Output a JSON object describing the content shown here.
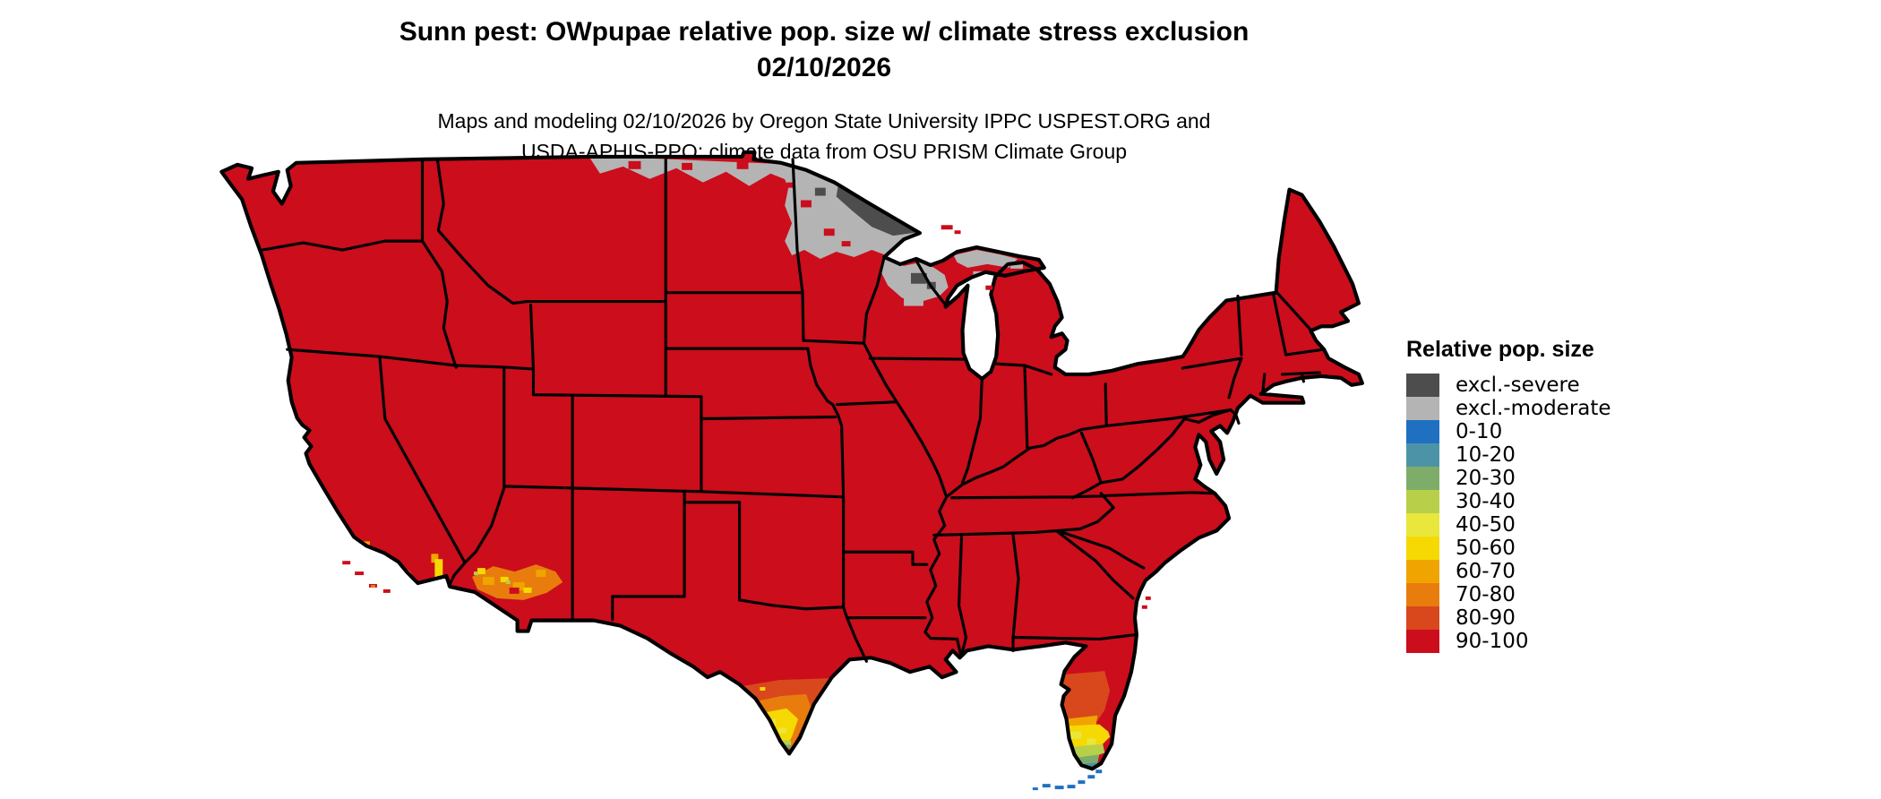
{
  "header": {
    "title_line1": "Sunn pest: OWpupae relative pop. size w/ climate stress exclusion",
    "title_line2": "02/10/2026",
    "subtitle_line1": "Maps and modeling 02/10/2026 by Oregon State University IPPC USPEST.ORG and",
    "subtitle_line2": "USDA-APHIS-PPQ; climate data from OSU PRISM Climate Group"
  },
  "legend": {
    "title": "Relative pop. size",
    "items": [
      {
        "label": "excl.-severe",
        "class": "excl_severe"
      },
      {
        "label": "excl.-moderate",
        "class": "excl_moderate"
      },
      {
        "label": "0-10",
        "class": "c0_10"
      },
      {
        "label": "10-20",
        "class": "c10_20"
      },
      {
        "label": "20-30",
        "class": "c20_30"
      },
      {
        "label": "30-40",
        "class": "c30_40"
      },
      {
        "label": "40-50",
        "class": "c40_50"
      },
      {
        "label": "50-60",
        "class": "c50_60"
      },
      {
        "label": "60-70",
        "class": "c60_70"
      },
      {
        "label": "70-80",
        "class": "c70_80"
      },
      {
        "label": "80-90",
        "class": "c80_90"
      },
      {
        "label": "90-100",
        "class": "c90_100"
      }
    ]
  },
  "map": {
    "palette": {
      "excl_severe": "#4D4D4D",
      "excl_moderate": "#B4B4B4",
      "c0_10": "#1F70C1",
      "c10_20": "#4D93A8",
      "c20_30": "#7EAD69",
      "c30_40": "#B8CF4A",
      "c40_50": "#E9E73C",
      "c50_60": "#F6D903",
      "c60_70": "#F0A400",
      "c70_80": "#E87D0D",
      "c80_90": "#D8481C",
      "c90_100": "#CB0D1C"
    },
    "border_color": "#000000",
    "background": "#FFFFFF",
    "base_class": "c90_100",
    "regions": [
      {
        "area": "contiguous United States (most of CONUS)",
        "value_class": "90-100"
      },
      {
        "area": "northern Montana / North Dakota border strip",
        "value_class": "excl.-moderate"
      },
      {
        "area": "northern Minnesota",
        "value_class": "excl.-moderate"
      },
      {
        "area": "Minnesota arrowhead (far north)",
        "value_class": "excl.-severe"
      },
      {
        "area": "northern Wisconsin",
        "value_class": "excl.-moderate"
      },
      {
        "area": "north-central Wisconsin spot",
        "value_class": "excl.-severe"
      },
      {
        "area": "upper peninsula Michigan patches",
        "value_class": "excl.-moderate"
      },
      {
        "area": "southern California coast",
        "value_class": "40-80 mixed"
      },
      {
        "area": "southwestern Arizona",
        "value_class": "50-80 mixed"
      },
      {
        "area": "south Texas tip",
        "value_class": "gradient 80-90 to 30-40"
      },
      {
        "area": "south Florida peninsula",
        "value_class": "gradient 80-90 to 10-20"
      },
      {
        "area": "Florida Keys",
        "value_class": "0-10"
      }
    ]
  }
}
